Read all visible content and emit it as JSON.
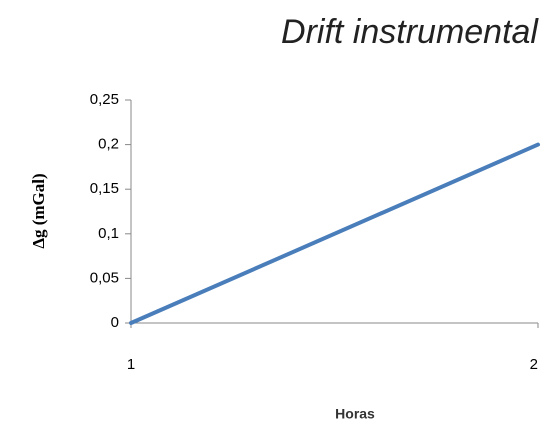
{
  "chart_data": {
    "type": "line",
    "title": "Drift instrumental",
    "x_label": "Horas",
    "y_label": "Δg (mGal)",
    "x": [
      1,
      2
    ],
    "series": [
      {
        "name": "Drift",
        "color": "#4a7ebb",
        "values": [
          0,
          0.2
        ]
      }
    ],
    "xlim": [
      1,
      2
    ],
    "xticks": [
      1,
      2
    ],
    "ylim": [
      0,
      0.25
    ],
    "yticks": [
      0,
      {
        "value": 0.05,
        "label": "0,05"
      },
      {
        "value": 0.1,
        "label": "0,1"
      },
      {
        "value": 0.15,
        "label": "0,15"
      },
      {
        "value": 0.2,
        "label": "0,2"
      },
      {
        "value": 0.25,
        "label": "0,25"
      }
    ],
    "grid": false
  }
}
